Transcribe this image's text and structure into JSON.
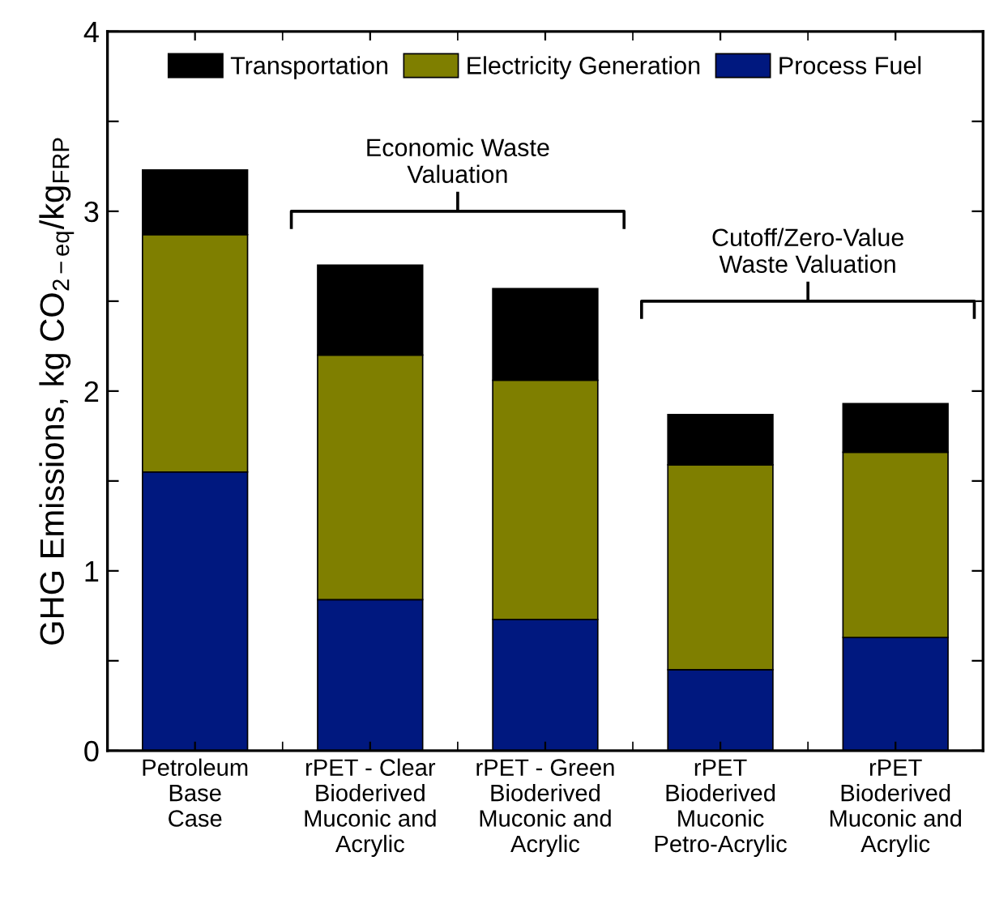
{
  "chart_data": {
    "type": "bar",
    "stacked": true,
    "ylabel": "GHG Emissions, kg CO$_{2−eq}$/kg$_{FRP}$",
    "categories": [
      "Petroleum\nBase\nCase",
      "rPET - Clear\nBioderived\nMuconic and\nAcrylic",
      "rPET - Green\nBioderived\nMuconic and\nAcrylic",
      "rPET\nBioderived\nMuconic\nPetro-Acrylic",
      "rPET\nBioderived\nMuconic and\nAcrylic"
    ],
    "series": [
      {
        "name": "Process Fuel",
        "color": "#00187f",
        "values": [
          1.55,
          0.84,
          0.73,
          0.45,
          0.63
        ]
      },
      {
        "name": "Electricity Generation",
        "color": "#7f7f00",
        "values": [
          1.32,
          1.36,
          1.33,
          1.14,
          1.03
        ]
      },
      {
        "name": "Transportation",
        "color": "#000000",
        "values": [
          0.36,
          0.5,
          0.51,
          0.28,
          0.27
        ]
      }
    ],
    "ylim": [
      0,
      4
    ],
    "yticks": [
      0,
      {
        "value": 0.5,
        "label": null
      },
      1,
      {
        "value": 1.5,
        "label": null
      },
      2,
      {
        "value": 2.5,
        "label": null
      },
      3,
      {
        "value": 3.5,
        "label": null
      },
      4
    ],
    "annotations": [
      "Economic Waste\nValuation",
      "Cutoff/Zero-Value\nWaste Valuation"
    ],
    "legend": "top",
    "grid": false
  }
}
